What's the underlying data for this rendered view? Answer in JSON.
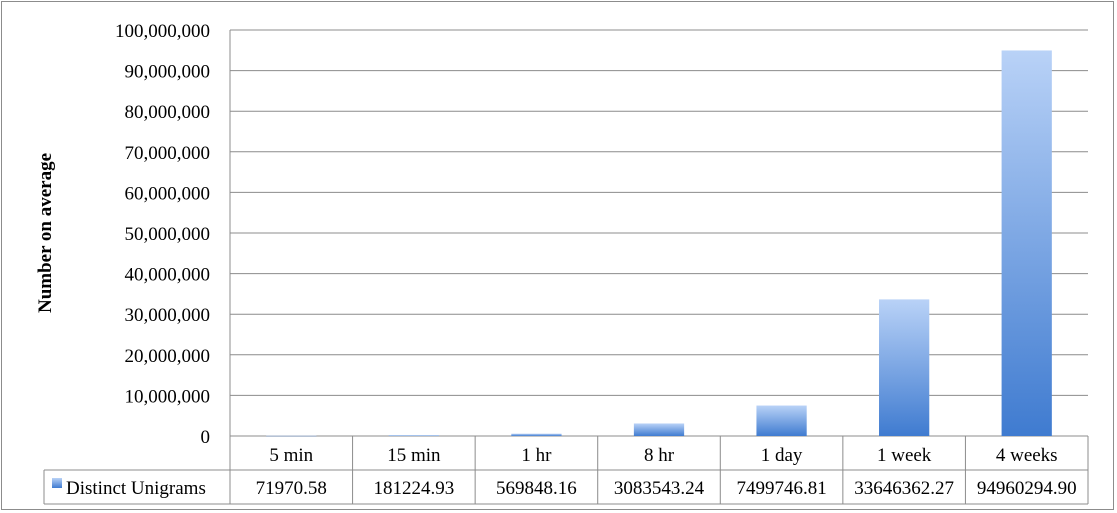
{
  "chart_data": {
    "type": "bar",
    "categories": [
      "5 min",
      "15 min",
      "1 hr",
      "8 hr",
      "1 day",
      "1 week",
      "4 weeks"
    ],
    "series": [
      {
        "name": "Distinct Unigrams",
        "values": [
          71970.58,
          181224.93,
          569848.16,
          3083543.24,
          7499746.81,
          33646362.27,
          94960294.9
        ],
        "value_labels": [
          "71970.58",
          "181224.93",
          "569848.16",
          "3083543.24",
          "7499746.81",
          "33646362.27",
          "94960294.90"
        ]
      }
    ],
    "title": "",
    "xlabel": "",
    "ylabel": "Number on average",
    "ylim": [
      0,
      100000000
    ],
    "yticks": [
      0,
      10000000,
      20000000,
      30000000,
      40000000,
      50000000,
      60000000,
      70000000,
      80000000,
      90000000,
      100000000
    ],
    "ytick_labels": [
      "0",
      "10,000,000",
      "20,000,000",
      "30,000,000",
      "40,000,000",
      "50,000,000",
      "60,000,000",
      "70,000,000",
      "80,000,000",
      "90,000,000",
      "100,000,000"
    ],
    "grid": true,
    "legend": "data table (below plot)",
    "colors": {
      "bar_light": "#b9d2f7",
      "bar_dark": "#3f7bd0",
      "grid": "#8c8c8c"
    }
  }
}
